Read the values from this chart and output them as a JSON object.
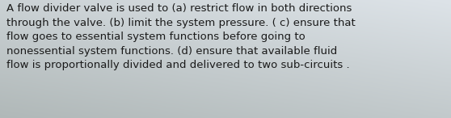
{
  "text": "A flow divider valve is used to (a) restrict flow in both directions\nthrough the valve. (b) limit the system pressure. ( c) ensure that\nflow goes to essential system functions before going to\nnonessential system functions. (d) ensure that available fluid\nflow is proportionally divided and delivered to two sub-circuits .",
  "bg_top_right": "#dde3e8",
  "bg_bottom_left": "#b0b8b8",
  "text_color": "#1a1a1a",
  "font_size": 9.5,
  "fig_width": 5.58,
  "fig_height": 1.46,
  "dpi": 100
}
